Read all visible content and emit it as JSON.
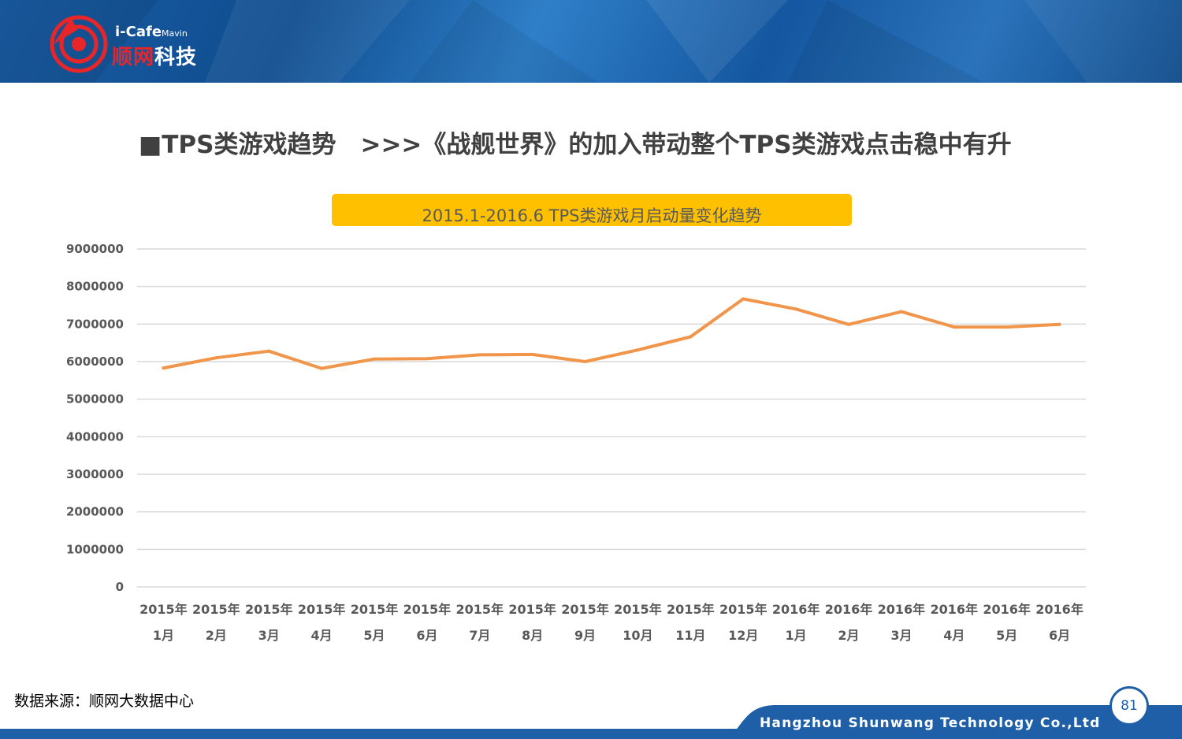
{
  "logo": {
    "latin": "i-Cafe",
    "latin_small": "Mavin",
    "cn_red": "顺网",
    "cn_white": "科技"
  },
  "page_title": "■TPS类游戏趋势　>>>《战舰世界》的加入带动整个TPS类游戏点击稳中有升",
  "chart_data": {
    "type": "line",
    "title": "2015.1-2016.6 TPS类游戏月启动量变化趋势",
    "categories": [
      [
        "2015年",
        "1月"
      ],
      [
        "2015年",
        "2月"
      ],
      [
        "2015年",
        "3月"
      ],
      [
        "2015年",
        "4月"
      ],
      [
        "2015年",
        "5月"
      ],
      [
        "2015年",
        "6月"
      ],
      [
        "2015年",
        "7月"
      ],
      [
        "2015年",
        "8月"
      ],
      [
        "2015年",
        "9月"
      ],
      [
        "2015年",
        "10月"
      ],
      [
        "2015年",
        "11月"
      ],
      [
        "2015年",
        "12月"
      ],
      [
        "2016年",
        "1月"
      ],
      [
        "2016年",
        "2月"
      ],
      [
        "2016年",
        "3月"
      ],
      [
        "2016年",
        "4月"
      ],
      [
        "2016年",
        "5月"
      ],
      [
        "2016年",
        "6月"
      ]
    ],
    "series": [
      {
        "values": [
          5830000,
          6100000,
          6280000,
          5820000,
          6070000,
          6080000,
          6180000,
          6190000,
          6000000,
          6310000,
          6660000,
          7670000,
          7400000,
          6990000,
          7330000,
          6920000,
          6920000,
          6990000
        ],
        "color": "#f0954a"
      }
    ],
    "yticks": [
      0,
      1000000,
      2000000,
      3000000,
      4000000,
      5000000,
      6000000,
      7000000,
      8000000,
      9000000
    ],
    "ylim": [
      0,
      9000000
    ],
    "grid": true,
    "legend": "none",
    "xlabel": "",
    "ylabel": ""
  },
  "source": "数据来源：顺网大数据中心",
  "footer": {
    "company": "Hangzhou Shunwang Technology Co.,Ltd",
    "page_number": "81"
  },
  "colors": {
    "header_blue": "#1a5ea6",
    "banner_yellow": "#ffc000",
    "line_orange": "#f0954a",
    "footer_blue": "#1f5fa8"
  }
}
